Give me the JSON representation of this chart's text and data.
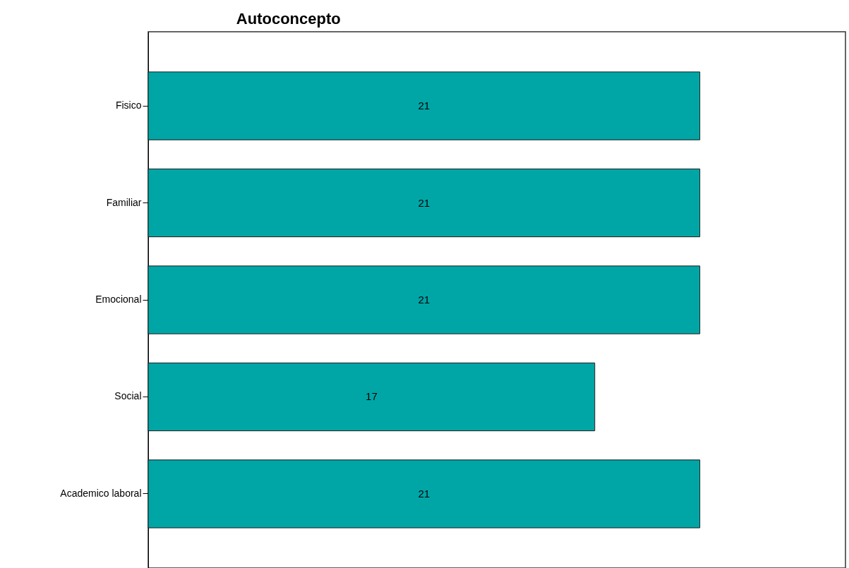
{
  "chart_data": {
    "type": "bar",
    "title": "Autoconcepto",
    "orientation": "horizontal",
    "categories": [
      "Fisico",
      "Familiar",
      "Emocional",
      "Social",
      "Academico laboral"
    ],
    "values": [
      21,
      21,
      21,
      17,
      21
    ],
    "color": "#00a6a6",
    "data_labels": true
  }
}
